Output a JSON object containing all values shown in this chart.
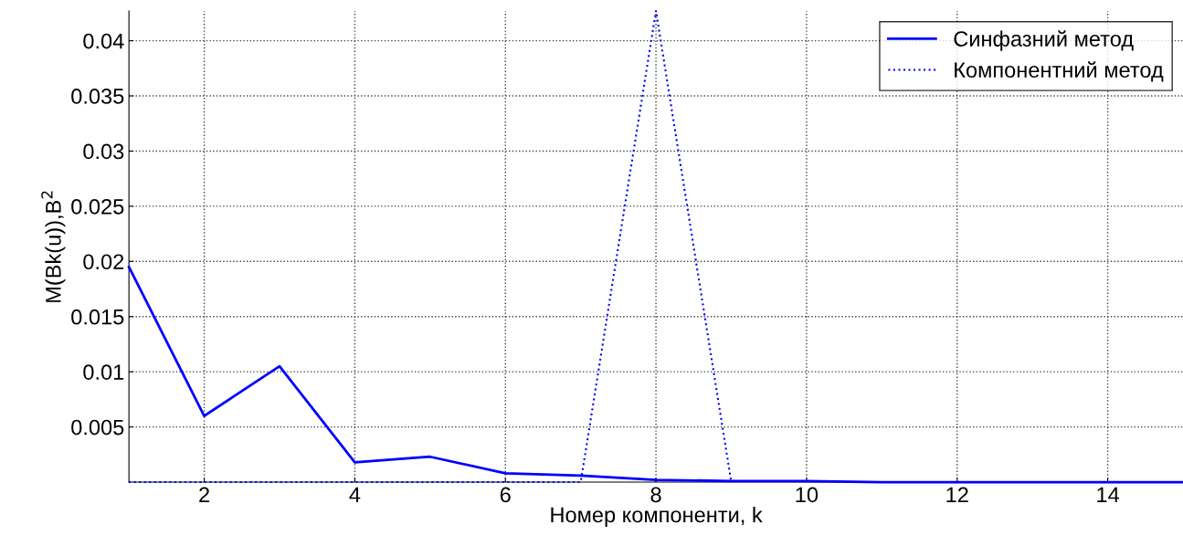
{
  "chart_data": {
    "type": "line",
    "xlabel": "Номер компоненти, k",
    "ylabel": "M(Bk(u)),B$^{2}$",
    "x": [
      1,
      2,
      3,
      4,
      5,
      6,
      7,
      8,
      9,
      10,
      11,
      12,
      13,
      14,
      15
    ],
    "series": [
      {
        "name": "Синфазний метод",
        "color": "#0000ff",
        "line_style": "solid",
        "values": [
          0.0195,
          0.006,
          0.0105,
          0.0018,
          0.0023,
          0.0008,
          0.0006,
          0.0002,
          0.0001,
          0.0001,
          0,
          0,
          0,
          0,
          0
        ]
      },
      {
        "name": "Компонентний метод",
        "color": "#0000ff",
        "line_style": "dotted",
        "values": [
          0,
          0,
          0,
          0,
          0,
          0,
          0,
          0.0427,
          0,
          null,
          null,
          null,
          null,
          null,
          null
        ]
      }
    ],
    "xlim": [
      1,
      15
    ],
    "xticks": [
      2,
      4,
      6,
      8,
      10,
      12,
      14
    ],
    "ylim": [
      0,
      0.0427
    ],
    "yticks": [
      0.005,
      0.01,
      0.015,
      0.02,
      0.025,
      0.03,
      0.035,
      0.04
    ],
    "grid": true,
    "legend": "top right"
  }
}
